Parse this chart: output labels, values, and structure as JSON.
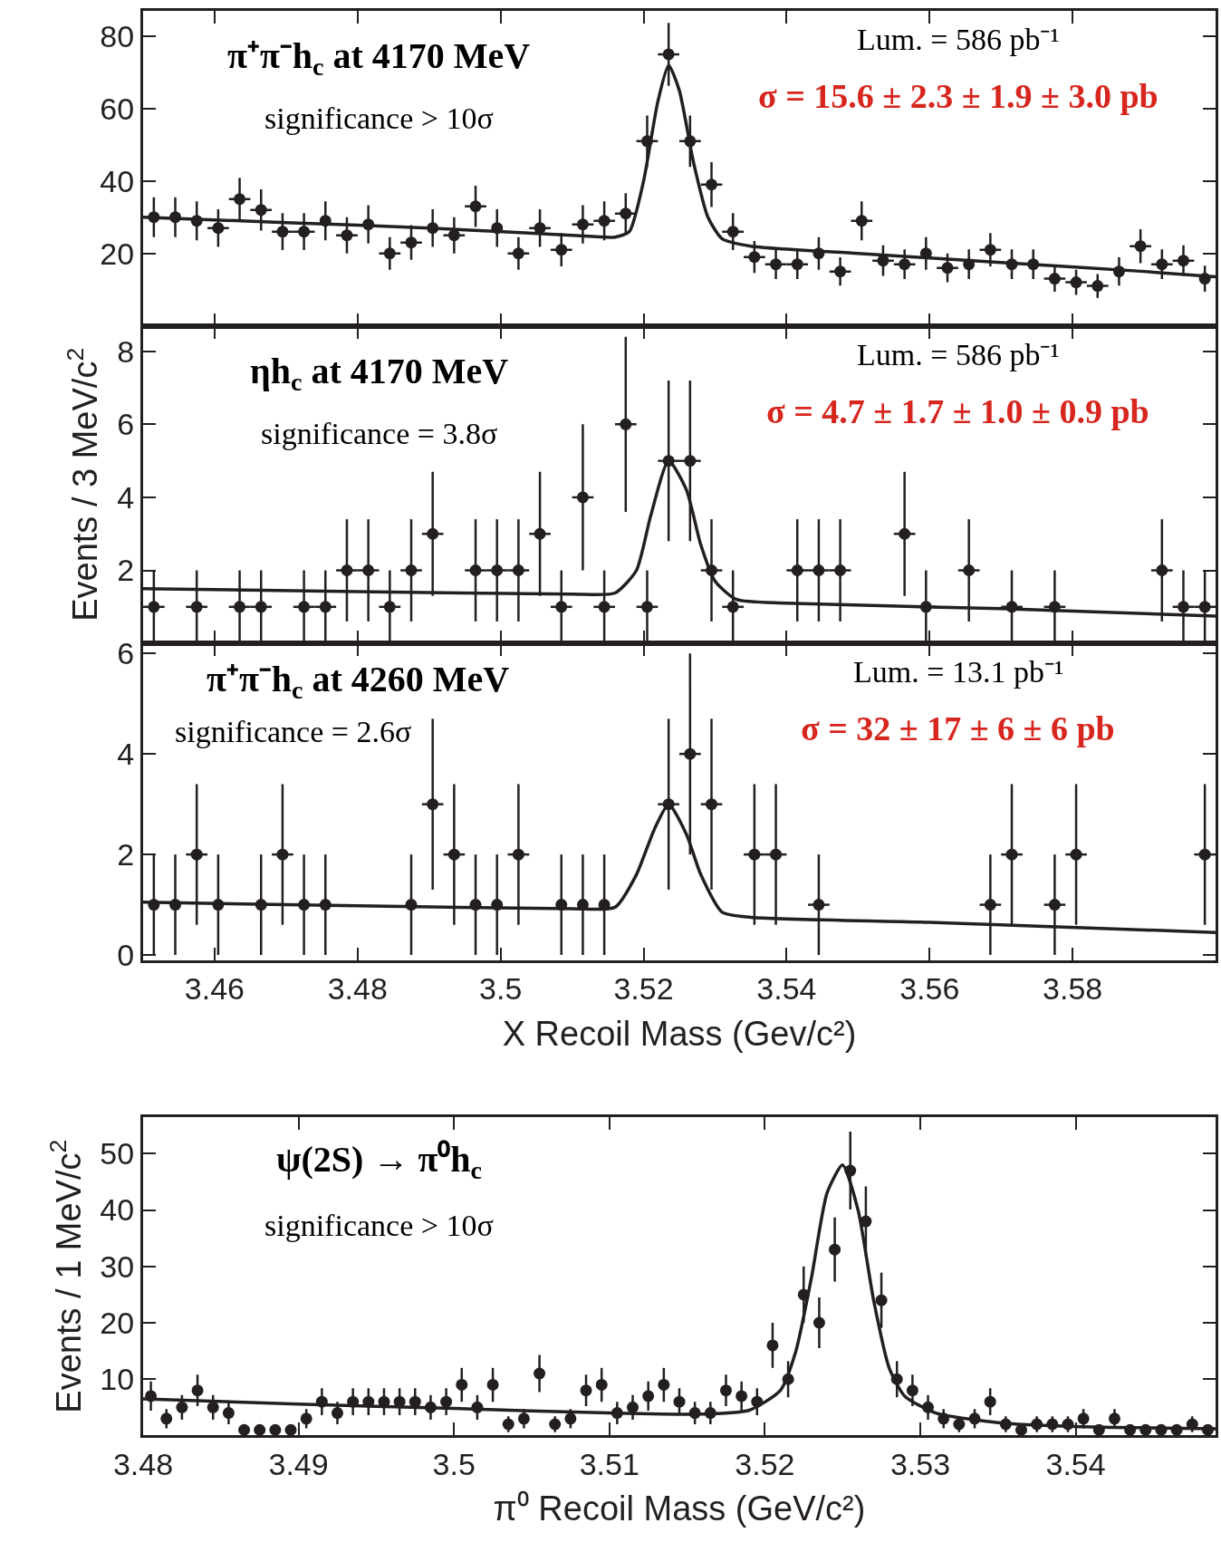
{
  "chart_data": [
    {
      "type": "scatter",
      "annotations": [
        "π⁺π⁻h$_{c}$ at 4170 MeV",
        "significance > 10σ",
        "Lum. = 586 pb⁻¹",
        "σ = 15.6 ± 2.3 ± 1.9 ± 3.0 pb"
      ],
      "xlim": [
        3.45,
        3.6
      ],
      "xticks": [
        3.46,
        3.48,
        3.5,
        3.52,
        3.54,
        3.56,
        3.58
      ],
      "ylim": [
        0,
        87
      ],
      "yticks": [
        20,
        40,
        60,
        80
      ],
      "tick_labels": "y",
      "series": [
        {
          "color": "#231f20",
          "marker": "circle",
          "x": [
            3.4515,
            3.4545,
            3.4575,
            3.4605,
            3.4635,
            3.4665,
            3.4695,
            3.4725,
            3.4755,
            3.4785,
            3.4815,
            3.4845,
            3.4875,
            3.4905,
            3.4935,
            3.4965,
            3.4995,
            3.5025,
            3.5055,
            3.5085,
            3.5115,
            3.5145,
            3.5175,
            3.5205,
            3.5235,
            3.5265,
            3.5295,
            3.5325,
            3.5355,
            3.5385,
            3.5415,
            3.5445,
            3.5475,
            3.5505,
            3.5535,
            3.5565,
            3.5595,
            3.5625,
            3.5655,
            3.5685,
            3.5715,
            3.5745,
            3.5775,
            3.5805,
            3.5835,
            3.5865,
            3.5895,
            3.5925,
            3.5955,
            3.5985
          ],
          "values": [
            30,
            30,
            29,
            27,
            35,
            32,
            26,
            26,
            29,
            25,
            28,
            20,
            23,
            27,
            25,
            33,
            27,
            20,
            27,
            21,
            28,
            29,
            31,
            51,
            75,
            51,
            39,
            26,
            19,
            17,
            17,
            20,
            15,
            29,
            18,
            17,
            20,
            16,
            17,
            21,
            17,
            17,
            13,
            12,
            11,
            15,
            22,
            17,
            18,
            13
          ],
          "errors": [
            5.5,
            5.5,
            5.4,
            5.2,
            5.9,
            5.7,
            5.1,
            5.1,
            5.4,
            5,
            5.3,
            4.5,
            4.8,
            5.2,
            5,
            5.7,
            5.2,
            4.5,
            5.2,
            4.6,
            5.3,
            5.4,
            5.6,
            7.1,
            8.7,
            7.1,
            6.2,
            5.1,
            4.4,
            4.1,
            4.1,
            4.5,
            3.9,
            5.4,
            4.2,
            4.1,
            4.5,
            4,
            4.1,
            4.6,
            4.1,
            4.1,
            3.6,
            3.5,
            3.3,
            3.9,
            4.7,
            4.1,
            4.2,
            3.6
          ],
          "xerrors": [
            null,
            null,
            null,
            0.0015,
            0.0015,
            0.0015,
            0.0015,
            0.0015,
            null,
            0.0015,
            null,
            0.0015,
            0.0015,
            null,
            0.0015,
            0.0015,
            null,
            0.0015,
            0.0015,
            0.0015,
            0.0015,
            0.0015,
            0.0015,
            0.0015,
            0.0015,
            0.0015,
            0.0015,
            0.0015,
            0.0015,
            0.0015,
            0.0015,
            null,
            0.0015,
            0.0015,
            0.0015,
            0.0015,
            null,
            0.0015,
            null,
            0.0015,
            null,
            null,
            0.0015,
            0.0015,
            0.0015,
            null,
            0.0015,
            0.0015,
            0.0015,
            null
          ]
        },
        {
          "type": "line",
          "color": "#231f20",
          "line_style": "solid",
          "x": [
            3.45,
            3.47,
            3.49,
            3.51,
            3.516,
            3.518,
            3.52,
            3.522,
            3.5235,
            3.525,
            3.527,
            3.529,
            3.531,
            3.535,
            3.55,
            3.57,
            3.59,
            3.6
          ],
          "values": [
            30,
            28.5,
            27,
            25,
            24.5,
            26,
            40,
            62,
            72,
            65,
            45,
            30,
            24,
            22,
            20,
            17.5,
            15,
            13.5
          ]
        }
      ]
    },
    {
      "type": "scatter",
      "ylabel": "Events / 3 MeV/c$^{2}$",
      "annotations": [
        "ηh$_{c}$ at 4170 MeV",
        "significance = 3.8σ",
        "Lum. = 586 pb⁻¹",
        "σ = 4.7 ± 1.7 ± 1.0 ± 0.9 pb"
      ],
      "xlim": [
        3.45,
        3.6
      ],
      "xticks": [
        3.46,
        3.48,
        3.5,
        3.52,
        3.54,
        3.56,
        3.58
      ],
      "ylim": [
        0,
        8.7
      ],
      "yticks": [
        2,
        4,
        6,
        8
      ],
      "tick_labels": "y",
      "series": [
        {
          "color": "#231f20",
          "marker": "circle",
          "x": [
            3.4515,
            3.4545,
            3.4575,
            3.4605,
            3.4635,
            3.4665,
            3.4695,
            3.4725,
            3.4755,
            3.4785,
            3.4815,
            3.4845,
            3.4875,
            3.4905,
            3.4935,
            3.4965,
            3.4995,
            3.5025,
            3.5055,
            3.5085,
            3.5115,
            3.5145,
            3.5175,
            3.5205,
            3.5235,
            3.5265,
            3.5295,
            3.5325,
            3.5355,
            3.5385,
            3.5415,
            3.5445,
            3.5475,
            3.5505,
            3.5535,
            3.5565,
            3.5595,
            3.5625,
            3.5655,
            3.5685,
            3.5715,
            3.5745,
            3.5775,
            3.5805,
            3.5835,
            3.5865,
            3.5895,
            3.5925,
            3.5955,
            3.5985
          ],
          "values": [
            1,
            null,
            1,
            null,
            1,
            1,
            null,
            1,
            1,
            2,
            2,
            1,
            2,
            3,
            null,
            2,
            2,
            2,
            3,
            1,
            4,
            1,
            6,
            1,
            5,
            5,
            2,
            1,
            null,
            null,
            2,
            2,
            2,
            null,
            null,
            3,
            1,
            null,
            2,
            null,
            1,
            null,
            1,
            null,
            null,
            null,
            null,
            2,
            1,
            1
          ],
          "errors": [
            1,
            null,
            1,
            null,
            1,
            1,
            null,
            1,
            1,
            1.4,
            1.4,
            1,
            1.4,
            1.7,
            null,
            1.4,
            1.4,
            1.4,
            1.7,
            1,
            2,
            1,
            2.4,
            1,
            2.2,
            2.2,
            1.4,
            1,
            null,
            null,
            1.4,
            1.4,
            1.4,
            null,
            null,
            1.7,
            1,
            null,
            1.4,
            null,
            1,
            null,
            1,
            null,
            null,
            null,
            null,
            1.4,
            1,
            1
          ],
          "xerrors": [
            0.0015,
            null,
            0.0015,
            null,
            0.0015,
            0.0015,
            null,
            0.0015,
            0.0015,
            0.0015,
            0.0015,
            0.0015,
            0.0015,
            0.0015,
            null,
            0.0015,
            0.0015,
            0.0015,
            0.0015,
            0.0015,
            0.0015,
            0.0015,
            0.0015,
            0.0015,
            0.0015,
            0.0015,
            0.0015,
            0.0015,
            null,
            null,
            0.0015,
            0.0015,
            0.0015,
            null,
            null,
            0.0015,
            0.0015,
            null,
            0.0015,
            null,
            0.0015,
            null,
            0.0015,
            null,
            null,
            null,
            null,
            0.0015,
            0.0015,
            0.0015
          ]
        },
        {
          "type": "line",
          "color": "#231f20",
          "line_style": "solid",
          "x": [
            3.45,
            3.48,
            3.51,
            3.516,
            3.519,
            3.521,
            3.5235,
            3.526,
            3.528,
            3.53,
            3.533,
            3.54,
            3.57,
            3.6
          ],
          "values": [
            1.5,
            1.42,
            1.35,
            1.38,
            2,
            3.5,
            5,
            4.2,
            2.7,
            1.7,
            1.2,
            1.1,
            0.95,
            0.75
          ]
        }
      ]
    },
    {
      "type": "scatter",
      "xlabel": "X Recoil Mass (Gev/c²)",
      "annotations": [
        "π⁺π⁻h$_{c}$ at 4260 MeV",
        "significance = 2.6σ",
        "Lum. = 13.1 pb⁻¹",
        "σ = 32 ± 17 ± 6 ± 6 pb"
      ],
      "xlim": [
        3.45,
        3.6
      ],
      "xticks": [
        3.46,
        3.48,
        3.5,
        3.52,
        3.54,
        3.56,
        3.58
      ],
      "ylim": [
        -0.1,
        6.2
      ],
      "yticks": [
        0,
        2,
        4,
        6
      ],
      "series": [
        {
          "color": "#231f20",
          "marker": "circle",
          "x": [
            3.4515,
            3.4545,
            3.4575,
            3.4605,
            3.4635,
            3.4665,
            3.4695,
            3.4725,
            3.4755,
            3.4785,
            3.4815,
            3.4845,
            3.4875,
            3.4905,
            3.4935,
            3.4965,
            3.4995,
            3.5025,
            3.5055,
            3.5085,
            3.5115,
            3.5145,
            3.5175,
            3.5205,
            3.5235,
            3.5265,
            3.5295,
            3.5325,
            3.5355,
            3.5385,
            3.5415,
            3.5445,
            3.5475,
            3.5505,
            3.5535,
            3.5565,
            3.5595,
            3.5625,
            3.5655,
            3.5685,
            3.5715,
            3.5745,
            3.5775,
            3.5805,
            3.5835,
            3.5865,
            3.5895,
            3.5925,
            3.5955,
            3.5985
          ],
          "values": [
            1,
            1,
            2,
            1,
            null,
            1,
            2,
            1,
            1,
            null,
            null,
            null,
            1,
            3,
            2,
            1,
            1,
            2,
            null,
            1,
            1,
            1,
            null,
            null,
            3,
            4,
            3,
            null,
            2,
            2,
            null,
            1,
            null,
            null,
            null,
            null,
            null,
            null,
            null,
            1,
            2,
            null,
            1,
            2,
            null,
            null,
            null,
            null,
            null,
            2
          ],
          "errors": [
            1,
            1,
            1.4,
            1,
            null,
            1,
            1.4,
            1,
            1,
            null,
            null,
            null,
            1,
            1.7,
            1.4,
            1,
            1,
            1.4,
            null,
            1,
            1,
            1,
            null,
            null,
            1.7,
            2,
            1.7,
            null,
            1.4,
            1.4,
            null,
            1,
            null,
            null,
            null,
            null,
            null,
            null,
            null,
            1,
            1.4,
            null,
            1,
            1.4,
            null,
            null,
            null,
            null,
            null,
            1.4
          ],
          "xerrors": [
            null,
            null,
            0.0015,
            null,
            null,
            null,
            0.0015,
            null,
            null,
            null,
            null,
            null,
            null,
            0.0015,
            0.0015,
            null,
            null,
            0.0015,
            null,
            null,
            null,
            null,
            null,
            null,
            0.0015,
            0.0015,
            0.0015,
            null,
            0.0015,
            0.0015,
            null,
            0.0015,
            null,
            null,
            null,
            null,
            null,
            null,
            null,
            0.0015,
            0.0015,
            null,
            0.0015,
            0.0015,
            null,
            null,
            null,
            null,
            null,
            0.0015
          ]
        },
        {
          "type": "line",
          "color": "#231f20",
          "line_style": "solid",
          "x": [
            3.45,
            3.48,
            3.51,
            3.516,
            3.519,
            3.5215,
            3.5235,
            3.526,
            3.528,
            3.531,
            3.535,
            3.56,
            3.6
          ],
          "values": [
            1.05,
            0.98,
            0.92,
            0.95,
            1.6,
            2.5,
            3,
            2.4,
            1.6,
            0.85,
            0.75,
            0.65,
            0.45
          ]
        }
      ]
    },
    {
      "type": "scatter",
      "xlabel": "π⁰ Recoil Mass (GeV/c²)",
      "ylabel": "Events / 1 MeV/c$^{2}$",
      "annotations": [
        "ψ(2S) → π⁰h$_{c}$",
        "significance > 10σ"
      ],
      "xlim": [
        3.48,
        3.549
      ],
      "xticks": [
        3.48,
        3.49,
        3.5,
        3.51,
        3.52,
        3.53,
        3.54
      ],
      "ylim": [
        0,
        56.5
      ],
      "yticks": [
        10,
        20,
        30,
        40,
        50
      ],
      "series": [
        {
          "color": "#231f20",
          "marker": "circle",
          "x": [
            3.4805,
            3.4815,
            3.4825,
            3.4835,
            3.4845,
            3.4855,
            3.4865,
            3.4875,
            3.4885,
            3.4895,
            3.4905,
            3.4915,
            3.4925,
            3.4935,
            3.4945,
            3.4955,
            3.4965,
            3.4975,
            3.4985,
            3.4995,
            3.5005,
            3.5015,
            3.5025,
            3.5035,
            3.5045,
            3.5055,
            3.5065,
            3.5075,
            3.5085,
            3.5095,
            3.5105,
            3.5115,
            3.5125,
            3.5135,
            3.5145,
            3.5155,
            3.5165,
            3.5175,
            3.5185,
            3.5195,
            3.5205,
            3.5215,
            3.5225,
            3.5235,
            3.5245,
            3.5255,
            3.5265,
            3.5275,
            3.5285,
            3.5295,
            3.5305,
            3.5315,
            3.5325,
            3.5335,
            3.5345,
            3.5355,
            3.5365,
            3.5375,
            3.5385,
            3.5395,
            3.5405,
            3.5415,
            3.5425,
            3.5435,
            3.5445,
            3.5455,
            3.5465,
            3.5475,
            3.5485
          ],
          "values": [
            7,
            3,
            5,
            8,
            5,
            4,
            1,
            1,
            1,
            1,
            3,
            6,
            4,
            6,
            6,
            6,
            6,
            6,
            5,
            6,
            9,
            5,
            9,
            2,
            3,
            11,
            2,
            3,
            8,
            9,
            4,
            5,
            7,
            9,
            6,
            4,
            4,
            8,
            7,
            6,
            16,
            10,
            25,
            20,
            33,
            47,
            38,
            24,
            10,
            8,
            5,
            3,
            2,
            3,
            6,
            2,
            1,
            2,
            2,
            2,
            3,
            1,
            3,
            1,
            1,
            1,
            1,
            2,
            1
          ],
          "errors": [
            2.6,
            1.7,
            2.2,
            2.8,
            2.2,
            2,
            1,
            1,
            1,
            1,
            1.7,
            2.4,
            2,
            2.4,
            2.4,
            2.4,
            2.4,
            2.4,
            2.2,
            2.4,
            3,
            2.2,
            3,
            1.4,
            1.7,
            3.3,
            1.4,
            1.7,
            2.8,
            3,
            2,
            2.2,
            2.6,
            3,
            2.4,
            2,
            2,
            2.8,
            2.6,
            2.4,
            4,
            3.2,
            5,
            4.5,
            5.7,
            6.9,
            6.2,
            4.9,
            3.2,
            2.8,
            2.2,
            1.7,
            1.4,
            1.7,
            2.4,
            1.4,
            1,
            1.4,
            1.4,
            1.4,
            1.7,
            1,
            1.7,
            1,
            1,
            1,
            1,
            1.4,
            1
          ]
        },
        {
          "type": "line",
          "color": "#231f20",
          "line_style": "solid",
          "x": [
            3.48,
            3.49,
            3.5,
            3.51,
            3.516,
            3.519,
            3.521,
            3.522,
            3.523,
            3.524,
            3.525,
            3.526,
            3.527,
            3.528,
            3.529,
            3.531,
            3.535,
            3.54,
            3.549
          ],
          "values": [
            6.5,
            5.6,
            4.8,
            4.0,
            3.8,
            4.5,
            8,
            15,
            28,
            43,
            48,
            40,
            24,
            12,
            7,
            4,
            2.3,
            1.6,
            1.2
          ]
        }
      ]
    }
  ]
}
